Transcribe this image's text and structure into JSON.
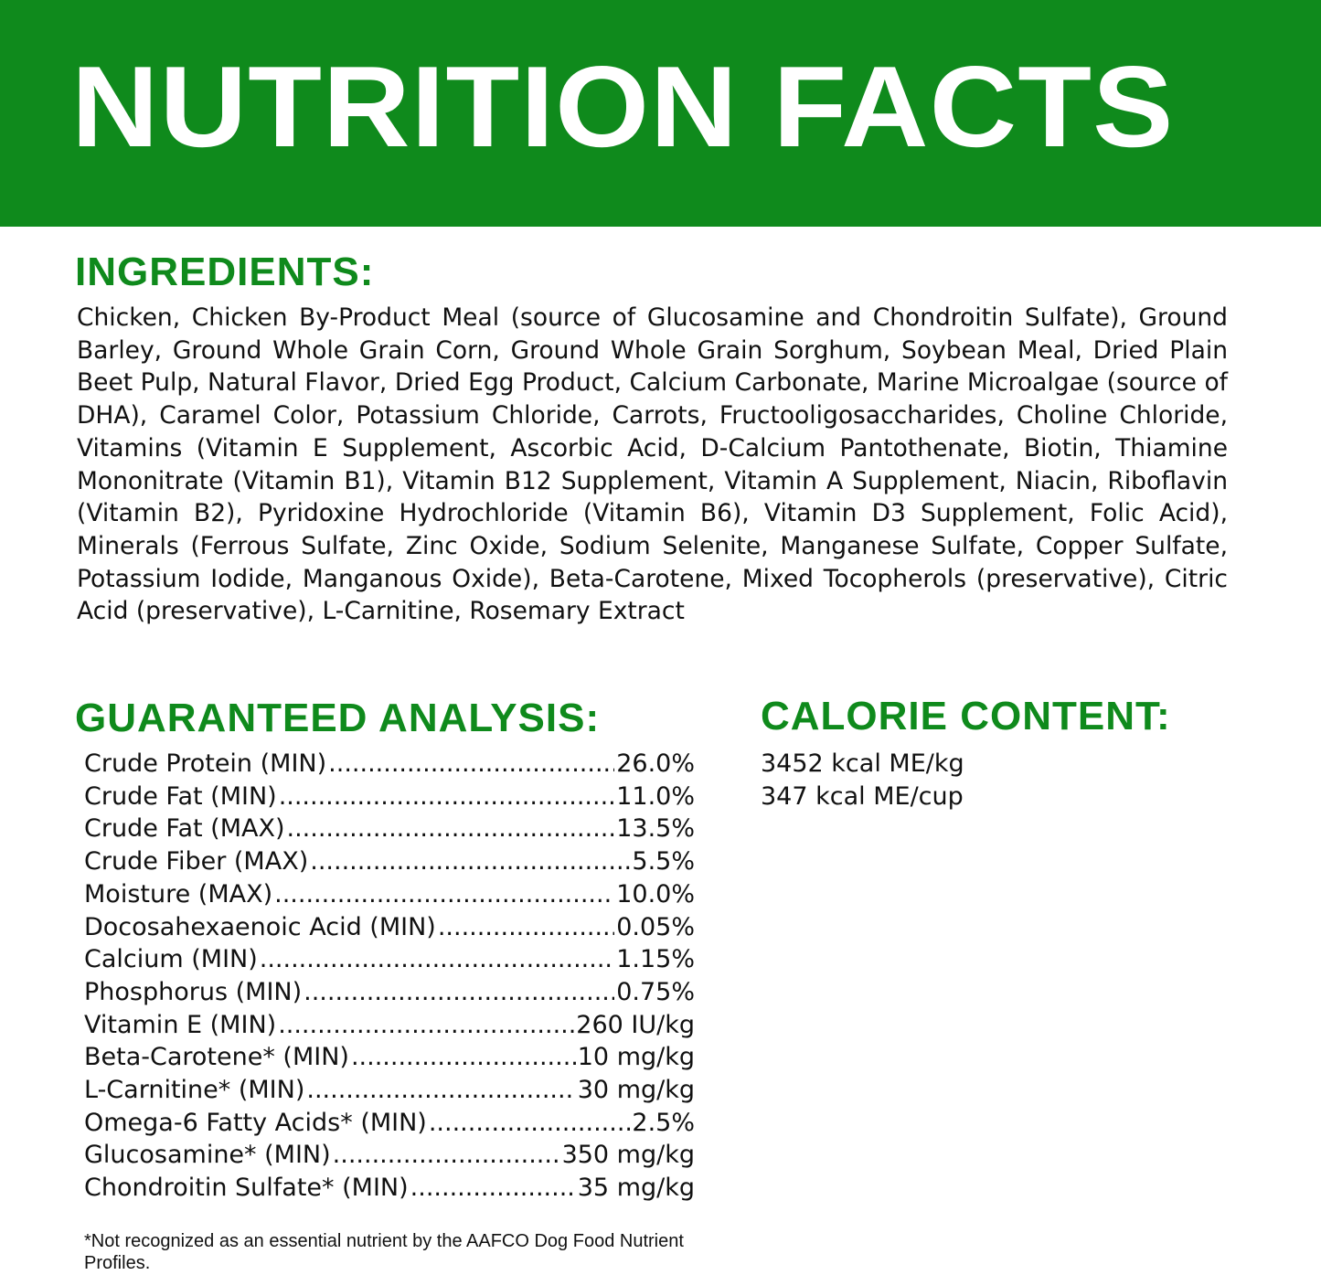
{
  "header": {
    "title": "NUTRITION FACTS",
    "color": "#0f8a1c"
  },
  "ingredients": {
    "heading": "INGREDIENTS:",
    "text": "Chicken, Chicken By-Product Meal (source of Glucosamine and Chondroitin Sulfate), Ground Barley, Ground Whole Grain Corn, Ground Whole Grain Sorghum, Soybean Meal, Dried Plain Beet Pulp, Natural Flavor, Dried Egg Product, Calcium Carbonate, Marine Microalgae (source of DHA), Caramel Color, Potassium Chloride, Carrots, Fructooligosaccharides, Choline Chloride, Vitamins (Vitamin E Supplement, Ascorbic Acid, D-Calcium Pantothenate, Biotin, Thiamine Mononitrate (Vitamin B1), Vitamin B12 Supplement, Vitamin A Supplement, Niacin, Riboflavin (Vitamin B2), Pyridoxine Hydrochloride (Vitamin B6), Vitamin D3 Supplement, Folic Acid), Minerals (Ferrous Sulfate, Zinc Oxide, Sodium Selenite, Manganese Sulfate, Copper Sulfate, Potassium Iodide, Manganous Oxide), Beta-Carotene, Mixed Tocopherols (preservative), Citric Acid (preservative), L-Carnitine, Rosemary Extract"
  },
  "analysis": {
    "heading": "GUARANTEED ANALYSIS:",
    "rows": [
      {
        "label": "Crude Protein (MIN)",
        "value": "26.0%"
      },
      {
        "label": "Crude Fat (MIN)",
        "value": "11.0%"
      },
      {
        "label": "Crude Fat (MAX)",
        "value": "13.5%"
      },
      {
        "label": "Crude Fiber (MAX)",
        "value": "5.5%"
      },
      {
        "label": "Moisture (MAX)",
        "value": "10.0%"
      },
      {
        "label": "Docosahexaenoic Acid (MIN)",
        "value": "0.05%"
      },
      {
        "label": "Calcium (MIN)",
        "value": "1.15%"
      },
      {
        "label": "Phosphorus (MIN)",
        "value": "0.75%"
      },
      {
        "label": "Vitamin E (MIN)",
        "value": "260 IU/kg"
      },
      {
        "label": "Beta-Carotene* (MIN)",
        "value": "10 mg/kg"
      },
      {
        "label": "L-Carnitine* (MIN)",
        "value": "30 mg/kg"
      },
      {
        "label": "Omega-6 Fatty Acids* (MIN)",
        "value": "2.5%"
      },
      {
        "label": "Glucosamine* (MIN)",
        "value": "350 mg/kg"
      },
      {
        "label": "Chondroitin Sulfate* (MIN)",
        "value": "35 mg/kg"
      }
    ]
  },
  "calories": {
    "heading": "CALORIE CONTENT:",
    "lines": [
      "3452 kcal ME/kg",
      "347 kcal ME/cup"
    ]
  },
  "footnote": "*Not recognized as an essential nutrient by the AAFCO Dog Food Nutrient Profiles."
}
